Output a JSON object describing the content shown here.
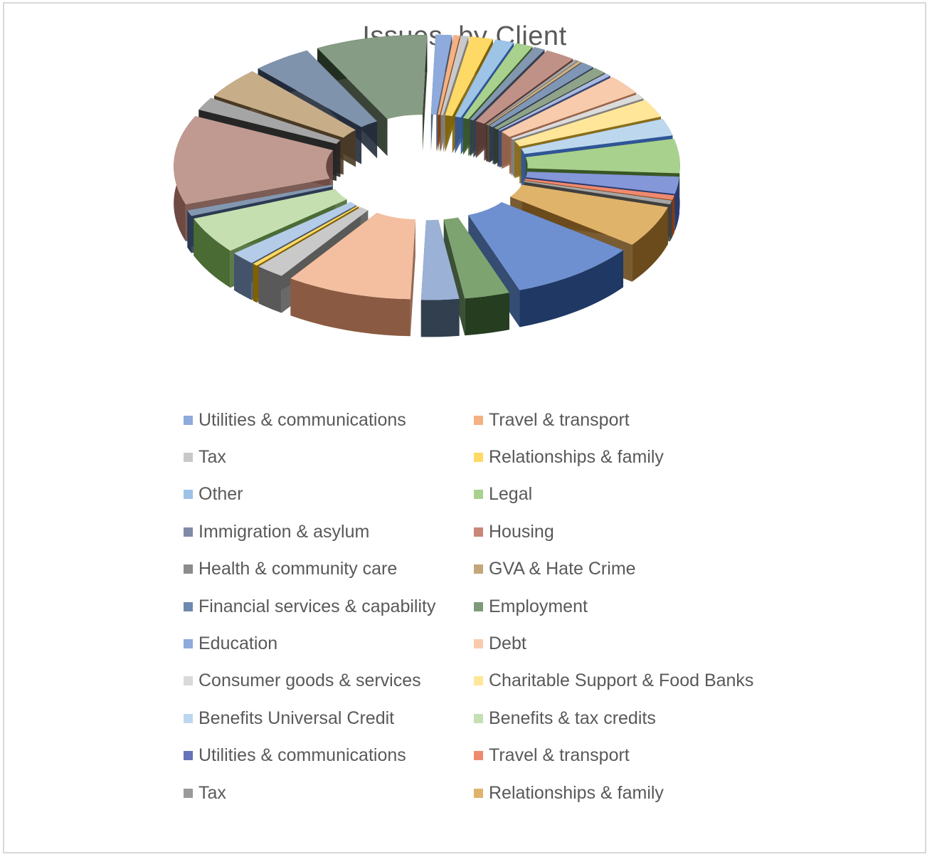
{
  "chart_data": {
    "type": "pie",
    "style": "3d-exploded",
    "title": "Issues  by Client",
    "slices": [
      {
        "label": "Utilities & communications",
        "value": 1.3,
        "color": "#8faadc",
        "dark": "#44546a"
      },
      {
        "label": "Travel & transport",
        "value": 0.5,
        "color": "#f4b183",
        "dark": "#843c0c"
      },
      {
        "label": "Tax",
        "value": 0.6,
        "color": "#c9c9c9",
        "dark": "#7f7f7f"
      },
      {
        "label": "Relationships & family",
        "value": 1.8,
        "color": "#ffd966",
        "dark": "#7f6000"
      },
      {
        "label": "Other",
        "value": 1.5,
        "color": "#9dc3e6",
        "dark": "#2f5597"
      },
      {
        "label": "Legal",
        "value": 1.4,
        "color": "#a9d18e",
        "dark": "#385723"
      },
      {
        "label": "Immigration & asylum",
        "value": 0.9,
        "color": "#8497b0",
        "dark": "#323f4f"
      },
      {
        "label": "Housing",
        "value": 2.4,
        "color": "#c09187",
        "dark": "#5a3a33"
      },
      {
        "label": "Health & community care",
        "value": 0.3,
        "color": "#a5a5a5",
        "dark": "#3a3a3a"
      },
      {
        "label": "GVA & Hate Crime",
        "value": 0.3,
        "color": "#c9b18a",
        "dark": "#5e4a2c"
      },
      {
        "label": "Financial services & capability",
        "value": 1.1,
        "color": "#7f96b6",
        "dark": "#2b3a52"
      },
      {
        "label": "Employment",
        "value": 1.1,
        "color": "#8fa38a",
        "dark": "#2e3b2a"
      },
      {
        "label": "Education",
        "value": 0.5,
        "color": "#a9b9e0",
        "dark": "#3b4a78"
      },
      {
        "label": "Debt",
        "value": 3.0,
        "color": "#f8cbad",
        "dark": "#9b6447"
      },
      {
        "label": "Consumer goods & services",
        "value": 0.8,
        "color": "#dbdbdb",
        "dark": "#7f7f7f"
      },
      {
        "label": "Charitable Support & Food Banks",
        "value": 2.8,
        "color": "#ffe699",
        "dark": "#8a6d1b"
      },
      {
        "label": "Benefits Universal Credit",
        "value": 2.6,
        "color": "#bdd7ee",
        "dark": "#2f5597"
      },
      {
        "label": "Benefits & tax credits",
        "value": 5.2,
        "color": "#a9d18e",
        "dark": "#385723"
      },
      {
        "label": "Utilities & communications",
        "value": 2.6,
        "color": "#8497d8",
        "dark": "#2b3a70"
      },
      {
        "label": "Travel & transport",
        "value": 0.7,
        "color": "#f08a6e",
        "dark": "#843c0c"
      },
      {
        "label": "Tax",
        "value": 0.6,
        "color": "#a5a5a5",
        "dark": "#3f3f3f"
      },
      {
        "label": "Relationships & family",
        "value": 6.3,
        "color": "#e0b36a",
        "dark": "#6b4a1c"
      },
      {
        "label": "Other",
        "value": 10.2,
        "color": "#6f90d0",
        "dark": "#1f3864"
      },
      {
        "label": "Legal",
        "value": 3.6,
        "color": "#7da370",
        "dark": "#263d20"
      },
      {
        "label": "Immigration & asylum",
        "value": 3.0,
        "color": "#9bb1d6",
        "dark": "#323f4f"
      },
      {
        "label": "Housing",
        "value": 10.0,
        "color": "#f4bfa0",
        "dark": "#8a5a42"
      },
      {
        "label": "Health & community care",
        "value": 2.3,
        "color": "#c9c9c9",
        "dark": "#595959"
      },
      {
        "label": "GVA & Hate Crime",
        "value": 0.4,
        "color": "#ffd966",
        "dark": "#7f6000"
      },
      {
        "label": "Financial services & capability",
        "value": 2.0,
        "color": "#b4cce8",
        "dark": "#44546a"
      },
      {
        "label": "Employment",
        "value": 5.6,
        "color": "#c5dfb0",
        "dark": "#4b6b35"
      },
      {
        "label": "Education",
        "value": 0.9,
        "color": "#8497b0",
        "dark": "#2b3a52"
      },
      {
        "label": "Debt",
        "value": 13.5,
        "color": "#c09a90",
        "dark": "#6e4a42"
      },
      {
        "label": "Consumer goods & services",
        "value": 2.0,
        "color": "#a5a5a5",
        "dark": "#262626"
      },
      {
        "label": "Charitable Support & Food Banks",
        "value": 4.7,
        "color": "#c7ad88",
        "dark": "#4a3a24"
      },
      {
        "label": "Benefits Universal Credit",
        "value": 4.7,
        "color": "#7f93ad",
        "dark": "#222b3a"
      },
      {
        "label": "Benefits & tax credits",
        "value": 8.9,
        "color": "#869c84",
        "dark": "#242f22"
      }
    ],
    "legend": [
      {
        "label": "Utilities & communications",
        "color": "#8faadc"
      },
      {
        "label": "Travel & transport",
        "color": "#f4b183"
      },
      {
        "label": "Tax",
        "color": "#c9c9c9"
      },
      {
        "label": "Relationships & family",
        "color": "#ffd966"
      },
      {
        "label": "Other",
        "color": "#9dc3e6"
      },
      {
        "label": "Legal",
        "color": "#a9d18e"
      },
      {
        "label": "Immigration & asylum",
        "color": "#7f8aa6"
      },
      {
        "label": "Housing",
        "color": "#c9877a"
      },
      {
        "label": "Health & community care",
        "color": "#8c8c8c"
      },
      {
        "label": "GVA & Hate Crime",
        "color": "#c2a77a"
      },
      {
        "label": "Financial services & capability",
        "color": "#6f89ad"
      },
      {
        "label": "Employment",
        "color": "#7f9a78"
      },
      {
        "label": "Education",
        "color": "#8faadc"
      },
      {
        "label": "Debt",
        "color": "#f8cbad"
      },
      {
        "label": "Consumer goods & services",
        "color": "#d9d9d9"
      },
      {
        "label": "Charitable Support & Food Banks",
        "color": "#ffe699"
      },
      {
        "label": "Benefits Universal Credit",
        "color": "#bdd7ee"
      },
      {
        "label": "Benefits & tax credits",
        "color": "#c5e0b4"
      },
      {
        "label": "Utilities & communications",
        "color": "#6673b8"
      },
      {
        "label": "Travel & transport",
        "color": "#ee8b6e"
      },
      {
        "label": "Tax",
        "color": "#9a9a9a"
      },
      {
        "label": "Relationships & family",
        "color": "#e0b36a"
      }
    ],
    "legend_position": "bottom"
  }
}
